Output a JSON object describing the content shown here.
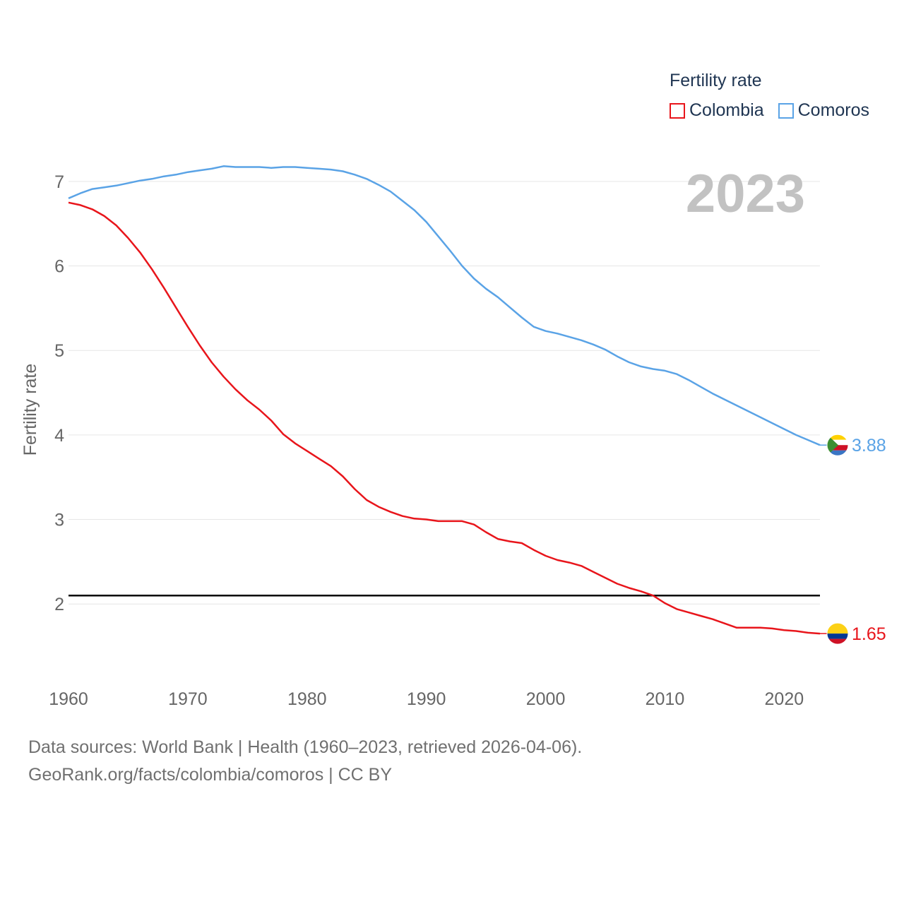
{
  "legend": {
    "title": "Fertility rate",
    "items": [
      {
        "label": "Colombia",
        "color": "#e8151b"
      },
      {
        "label": "Comoros",
        "color": "#5aa3e6"
      }
    ]
  },
  "footer": {
    "line1": "Data sources: World Bank | Health (1960–2023, retrieved 2026-04-06).",
    "line2": "GeoRank.org/facts/colombia/comoros | CC BY"
  },
  "chart_data": {
    "type": "line",
    "title": "Fertility rate",
    "year_label": "2023",
    "xlabel": "",
    "ylabel": "Fertility rate",
    "xlim": [
      1960,
      2023
    ],
    "ylim": [
      1.4,
      7.4
    ],
    "x_ticks": [
      1960,
      1970,
      1980,
      1990,
      2000,
      2010,
      2020
    ],
    "y_ticks": [
      2,
      3,
      4,
      5,
      6,
      7
    ],
    "reference_line": {
      "y": 2.1,
      "color": "#000000"
    },
    "grid": true,
    "x": [
      1960,
      1961,
      1962,
      1963,
      1964,
      1965,
      1966,
      1967,
      1968,
      1969,
      1970,
      1971,
      1972,
      1973,
      1974,
      1975,
      1976,
      1977,
      1978,
      1979,
      1980,
      1981,
      1982,
      1983,
      1984,
      1985,
      1986,
      1987,
      1988,
      1989,
      1990,
      1991,
      1992,
      1993,
      1994,
      1995,
      1996,
      1997,
      1998,
      1999,
      2000,
      2001,
      2002,
      2003,
      2004,
      2005,
      2006,
      2007,
      2008,
      2009,
      2010,
      2011,
      2012,
      2013,
      2014,
      2015,
      2016,
      2017,
      2018,
      2019,
      2020,
      2021,
      2022,
      2023
    ],
    "series": [
      {
        "name": "Colombia",
        "color": "#e8151b",
        "end_label": "1.65",
        "values": [
          6.75,
          6.72,
          6.67,
          6.59,
          6.48,
          6.33,
          6.16,
          5.96,
          5.74,
          5.51,
          5.28,
          5.06,
          4.86,
          4.69,
          4.54,
          4.41,
          4.3,
          4.17,
          4.01,
          3.9,
          3.81,
          3.72,
          3.63,
          3.51,
          3.36,
          3.23,
          3.15,
          3.09,
          3.04,
          3.01,
          3.0,
          2.98,
          2.98,
          2.98,
          2.94,
          2.85,
          2.77,
          2.74,
          2.72,
          2.64,
          2.57,
          2.52,
          2.49,
          2.45,
          2.38,
          2.31,
          2.24,
          2.19,
          2.15,
          2.1,
          2.01,
          1.94,
          1.9,
          1.86,
          1.82,
          1.77,
          1.72,
          1.72,
          1.72,
          1.71,
          1.69,
          1.68,
          1.66,
          1.65
        ]
      },
      {
        "name": "Comoros",
        "color": "#5aa3e6",
        "end_label": "3.88",
        "values": [
          6.8,
          6.86,
          6.91,
          6.93,
          6.95,
          6.98,
          7.01,
          7.03,
          7.06,
          7.08,
          7.11,
          7.13,
          7.15,
          7.18,
          7.17,
          7.17,
          7.17,
          7.16,
          7.17,
          7.17,
          7.16,
          7.15,
          7.14,
          7.12,
          7.08,
          7.03,
          6.96,
          6.88,
          6.77,
          6.66,
          6.52,
          6.35,
          6.18,
          6.0,
          5.85,
          5.73,
          5.63,
          5.51,
          5.39,
          5.28,
          5.23,
          5.2,
          5.16,
          5.12,
          5.07,
          5.01,
          4.93,
          4.86,
          4.81,
          4.78,
          4.76,
          4.72,
          4.65,
          4.57,
          4.49,
          4.42,
          4.35,
          4.28,
          4.21,
          4.14,
          4.07,
          4.0,
          3.94,
          3.88
        ]
      }
    ]
  }
}
